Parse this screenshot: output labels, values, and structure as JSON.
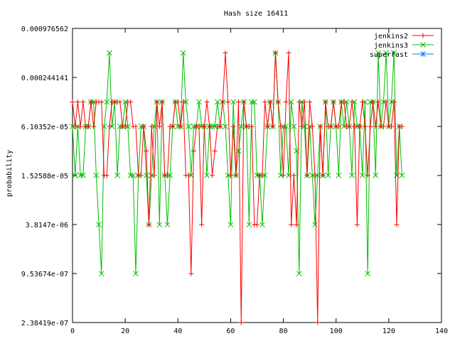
{
  "chart_data": {
    "type": "line",
    "title": "Hash size 16411",
    "ylabel": "probability",
    "xlabel": "",
    "xlim": [
      0,
      140
    ],
    "ylim": [
      2.38419e-07,
      0.000976562
    ],
    "yscale": "log",
    "grid": false,
    "legend_position": "top-right",
    "x_ticks": [
      "0",
      "20",
      "40",
      "60",
      "80",
      "100",
      "120",
      "140"
    ],
    "x_tick_values": [
      0,
      20,
      40,
      60,
      80,
      100,
      120,
      140
    ],
    "y_ticks": [
      "2.38419e-07",
      "9.53674e-07",
      "3.8147e-06",
      "1.52588e-05",
      "6.10352e-05",
      "0.000244141",
      "0.000976562"
    ],
    "y_tick_values": [
      2.38419e-07,
      9.53674e-07,
      3.8147e-06,
      1.52588e-05,
      6.10352e-05,
      0.000244141,
      0.000976562
    ],
    "series": [
      {
        "name": "jenkins2",
        "color": "#ff0000",
        "marker": "plus",
        "x": [
          0,
          1,
          2,
          3,
          4,
          5,
          6,
          7,
          8,
          9,
          10,
          11,
          12,
          13,
          14,
          15,
          16,
          17,
          18,
          19,
          20,
          21,
          22,
          23,
          24,
          25,
          26,
          27,
          28,
          29,
          30,
          31,
          32,
          33,
          34,
          35,
          36,
          37,
          38,
          39,
          40,
          41,
          42,
          43,
          44,
          45,
          46,
          47,
          48,
          49,
          50,
          51,
          52,
          53,
          54,
          55,
          56,
          57,
          58,
          59,
          60,
          61,
          62,
          63,
          64,
          65,
          66,
          67,
          68,
          69,
          70,
          71,
          72,
          73,
          74,
          75,
          76,
          77,
          78,
          79,
          80,
          81,
          82,
          83,
          84,
          85,
          86,
          87,
          88,
          89,
          90,
          91,
          92,
          93,
          94,
          95,
          96,
          97,
          98,
          99,
          100,
          101,
          102,
          103,
          104,
          105,
          106,
          107,
          108,
          109,
          110,
          111,
          112,
          113,
          114,
          115,
          116,
          117,
          118,
          119,
          120,
          121,
          122,
          123,
          124,
          125
        ],
        "values": [
          0.000122,
          6.1e-05,
          0.000122,
          6.1e-05,
          0.000122,
          6.1e-05,
          6.1e-05,
          0.000122,
          6.1e-05,
          0.000122,
          0.000122,
          0.000122,
          1.53e-05,
          1.53e-05,
          6.1e-05,
          0.000122,
          0.000122,
          0.000122,
          0.000122,
          6.1e-05,
          6.1e-05,
          0.000122,
          0.000122,
          6.1e-05,
          6.1e-05,
          1.53e-05,
          1.53e-05,
          6.1e-05,
          3.05e-05,
          3.8e-06,
          6.1e-05,
          1.53e-05,
          0.000122,
          6.1e-05,
          0.000122,
          1.53e-05,
          1.53e-05,
          6.1e-05,
          6.1e-05,
          0.000122,
          0.000122,
          6.1e-05,
          0.000122,
          1.53e-05,
          1.53e-05,
          9.5e-07,
          3.05e-05,
          6.1e-05,
          6.1e-05,
          3.8e-06,
          6.1e-05,
          0.000122,
          6.1e-05,
          1.53e-05,
          3.05e-05,
          6.1e-05,
          6.1e-05,
          0.000122,
          0.000488,
          0.000122,
          1.53e-05,
          6.1e-05,
          1.53e-05,
          0.000122,
          2.38e-07,
          0.000122,
          6.1e-05,
          6.1e-05,
          6.1e-05,
          3.8e-06,
          3.8e-06,
          1.53e-05,
          1.53e-05,
          0.000122,
          6.1e-05,
          0.000122,
          6.1e-05,
          0.000488,
          0.000122,
          6.1e-05,
          1.53e-05,
          0.000122,
          0.000488,
          3.8e-06,
          1.53e-05,
          3.8e-06,
          0.000122,
          6.1e-05,
          0.000122,
          1.53e-05,
          0.000122,
          6.1e-05,
          1.53e-05,
          2.38e-07,
          6.1e-05,
          1.53e-05,
          0.000122,
          6.1e-05,
          6.1e-05,
          0.000122,
          6.1e-05,
          6.1e-05,
          0.000122,
          0.000122,
          6.1e-05,
          6.1e-05,
          0.000122,
          6.1e-05,
          3.8e-06,
          6.1e-05,
          0.000122,
          6.1e-05,
          1.53e-05,
          6.1e-05,
          0.000122,
          6.1e-05,
          0.000122,
          6.1e-05,
          6.1e-05,
          0.000122,
          6.1e-05,
          6.1e-05,
          0.000122,
          3.8e-06,
          6.1e-05,
          6.1e-05
        ]
      },
      {
        "name": "jenkins3",
        "color": "#00c000",
        "marker": "cross",
        "x": [
          0,
          1,
          2,
          3,
          4,
          5,
          6,
          7,
          8,
          9,
          10,
          11,
          12,
          13,
          14,
          15,
          16,
          17,
          18,
          19,
          20,
          21,
          22,
          23,
          24,
          25,
          26,
          27,
          28,
          29,
          30,
          31,
          32,
          33,
          34,
          35,
          36,
          37,
          38,
          39,
          40,
          41,
          42,
          43,
          44,
          45,
          46,
          47,
          48,
          49,
          50,
          51,
          52,
          53,
          54,
          55,
          56,
          57,
          58,
          59,
          60,
          61,
          62,
          63,
          64,
          65,
          66,
          67,
          68,
          69,
          70,
          71,
          72,
          73,
          74,
          75,
          76,
          77,
          78,
          79,
          80,
          81,
          82,
          83,
          84,
          85,
          86,
          87,
          88,
          89,
          90,
          91,
          92,
          93,
          94,
          95,
          96,
          97,
          98,
          99,
          100,
          101,
          102,
          103,
          104,
          105,
          106,
          107,
          108,
          109,
          110,
          111,
          112,
          113,
          114,
          115,
          116,
          117,
          118,
          119,
          120,
          121,
          122,
          123,
          124,
          125
        ],
        "values": [
          6.1e-05,
          1.53e-05,
          6.1e-05,
          1.53e-05,
          1.53e-05,
          6.1e-05,
          6.1e-05,
          0.000122,
          0.000122,
          1.53e-05,
          3.8e-06,
          9.5e-07,
          6.1e-05,
          0.000122,
          0.000488,
          6.1e-05,
          0.000122,
          1.53e-05,
          6.1e-05,
          6.1e-05,
          0.000122,
          6.1e-05,
          1.53e-05,
          1.53e-05,
          9.5e-07,
          1.53e-05,
          6.1e-05,
          6.1e-05,
          1.53e-05,
          3.8e-06,
          1.53e-05,
          6.1e-05,
          0.000122,
          3.8e-06,
          0.000122,
          1.53e-05,
          3.8e-06,
          1.53e-05,
          6.1e-05,
          0.000122,
          6.1e-05,
          6.1e-05,
          0.000488,
          0.000122,
          6.1e-05,
          1.53e-05,
          6.1e-05,
          6.1e-05,
          0.000122,
          6.1e-05,
          6.1e-05,
          1.53e-05,
          6.1e-05,
          6.1e-05,
          6.1e-05,
          0.000122,
          6.1e-05,
          0.000122,
          6.1e-05,
          1.53e-05,
          3.8e-06,
          0.000122,
          1.53e-05,
          3.05e-05,
          6.1e-05,
          0.000122,
          6.1e-05,
          3.8e-06,
          0.000122,
          0.000122,
          1.53e-05,
          1.53e-05,
          3.8e-06,
          1.53e-05,
          6.1e-05,
          0.000122,
          6.1e-05,
          0.000488,
          0.000122,
          1.53e-05,
          6.1e-05,
          6.1e-05,
          1.53e-05,
          0.000122,
          6.1e-05,
          3.05e-05,
          9.5e-07,
          0.000122,
          6.1e-05,
          1.53e-05,
          6.1e-05,
          1.53e-05,
          3.8e-06,
          1.53e-05,
          6.1e-05,
          1.53e-05,
          0.000122,
          1.53e-05,
          6.1e-05,
          0.000122,
          6.1e-05,
          1.53e-05,
          0.000122,
          6.1e-05,
          0.000122,
          6.1e-05,
          1.53e-05,
          0.000122,
          6.1e-05,
          6.1e-05,
          1.53e-05,
          0.000122,
          9.5e-07,
          0.000122,
          0.000122,
          1.53e-05,
          0.000488,
          6.1e-05,
          0.000122,
          0.000488,
          6.1e-05,
          0.000122,
          0.000488,
          1.53e-05,
          6.1e-05,
          1.53e-05
        ]
      },
      {
        "name": "superfast",
        "color": "#0080ff",
        "marker": "star",
        "x": [],
        "values": []
      }
    ]
  }
}
